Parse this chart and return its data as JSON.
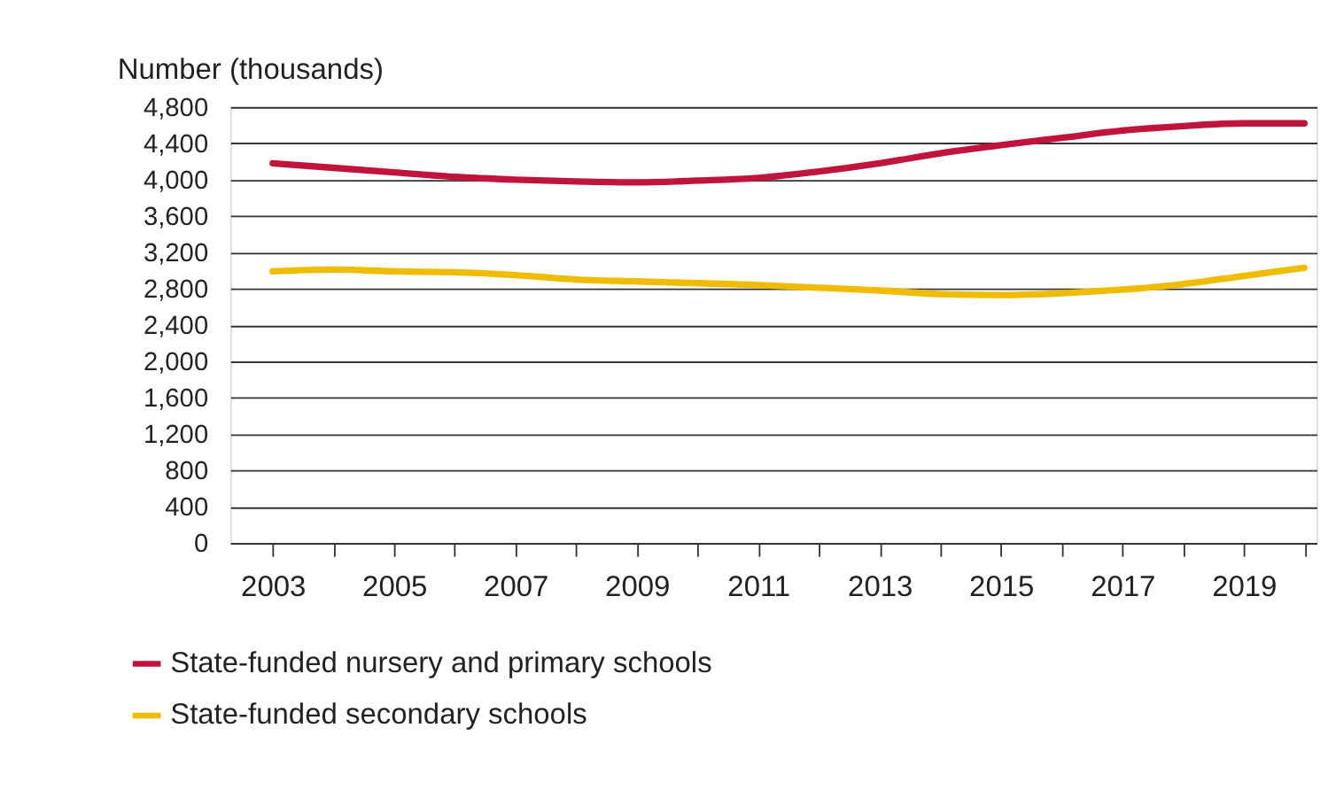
{
  "chart_data": {
    "type": "line",
    "ylabel": "Number (thousands)",
    "x": [
      2003,
      2004,
      2005,
      2006,
      2007,
      2008,
      2009,
      2010,
      2011,
      2012,
      2013,
      2014,
      2015,
      2016,
      2017,
      2018,
      2019,
      2020
    ],
    "series": [
      {
        "name": "State-funded nursery and primary schools",
        "color": "#c0143c",
        "values": [
          4180,
          4130,
          4080,
          4030,
          4000,
          3980,
          3970,
          3990,
          4020,
          4090,
          4180,
          4290,
          4380,
          4460,
          4540,
          4590,
          4620,
          4620
        ]
      },
      {
        "name": "State-funded secondary schools",
        "color": "#f0bc00",
        "values": [
          2990,
          3010,
          2990,
          2980,
          2950,
          2900,
          2880,
          2860,
          2840,
          2810,
          2780,
          2740,
          2730,
          2750,
          2790,
          2850,
          2940,
          3030
        ]
      }
    ],
    "xlim": [
      2002.3,
      2020.2
    ],
    "xticks": [
      2003,
      {
        "value": 2004,
        "label": null
      },
      2005,
      {
        "value": 2006,
        "label": null
      },
      2007,
      {
        "value": 2008,
        "label": null
      },
      2009,
      {
        "value": 2010,
        "label": null
      },
      2011,
      {
        "value": 2012,
        "label": null
      },
      2013,
      {
        "value": 2014,
        "label": null
      },
      2015,
      {
        "value": 2016,
        "label": null
      },
      2017,
      {
        "value": 2018,
        "label": null
      },
      2019,
      {
        "value": 2020,
        "label": null
      }
    ],
    "ylim": [
      0,
      4800
    ],
    "yticks": [
      {
        "value": 0,
        "label": "0"
      },
      {
        "value": 400,
        "label": "400"
      },
      {
        "value": 800,
        "label": "800"
      },
      {
        "value": 1200,
        "label": "1,200"
      },
      {
        "value": 1600,
        "label": "1,600"
      },
      {
        "value": 2000,
        "label": "2,000"
      },
      {
        "value": 2400,
        "label": "2,400"
      },
      {
        "value": 2800,
        "label": "2,800"
      },
      {
        "value": 3200,
        "label": "3,200"
      },
      {
        "value": 3600,
        "label": "3,600"
      },
      {
        "value": 4000,
        "label": "4,000"
      },
      {
        "value": 4400,
        "label": "4,400"
      },
      {
        "value": 4800,
        "label": "4,800"
      }
    ],
    "grid": "y",
    "legend": "bottom",
    "marker": "none",
    "line_style": "solid"
  }
}
